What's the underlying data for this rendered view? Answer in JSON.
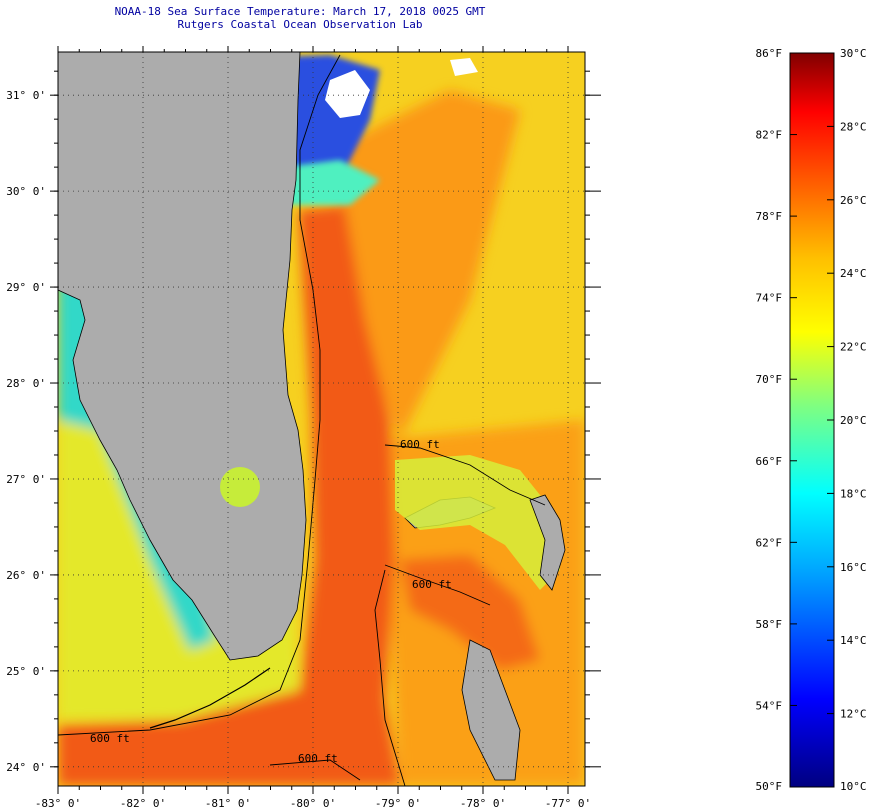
{
  "header": {
    "title": "NOAA-18 Sea Surface Temperature:  March 17, 2018 0025 GMT",
    "subtitle": "Rutgers Coastal Ocean Observation Lab"
  },
  "map": {
    "lon_range": [
      -83.0,
      -76.8
    ],
    "lat_range": [
      23.8,
      31.45
    ],
    "lon_ticks": [
      {
        "value": -83,
        "label": "-83° 0'"
      },
      {
        "value": -82,
        "label": "-82° 0'"
      },
      {
        "value": -81,
        "label": "-81° 0'"
      },
      {
        "value": -80,
        "label": "-80° 0'"
      },
      {
        "value": -79,
        "label": "-79° 0'"
      },
      {
        "value": -78,
        "label": "-78° 0'"
      },
      {
        "value": -77,
        "label": "-77° 0'"
      }
    ],
    "lat_ticks": [
      {
        "value": 31,
        "label": "31° 0'"
      },
      {
        "value": 30,
        "label": "30° 0'"
      },
      {
        "value": 29,
        "label": "29° 0'"
      },
      {
        "value": 28,
        "label": "28° 0'"
      },
      {
        "value": 27,
        "label": "27° 0'"
      },
      {
        "value": 26,
        "label": "26° 0'"
      },
      {
        "value": 25,
        "label": "25° 0'"
      },
      {
        "value": 24,
        "label": "24° 0'"
      }
    ],
    "contour_label": "600 ft",
    "colors": {
      "land": "#acacac",
      "cloud": "#ffffff",
      "gulf_stream": "#f25a12",
      "atlantic": "#f6d020",
      "gulf": "#e4e82a",
      "coastal_cold": "#32d8c8"
    }
  },
  "colorbar": {
    "fahrenheit": [
      {
        "value": 86,
        "label": "86°F"
      },
      {
        "value": 82,
        "label": "82°F"
      },
      {
        "value": 78,
        "label": "78°F"
      },
      {
        "value": 74,
        "label": "74°F"
      },
      {
        "value": 70,
        "label": "70°F"
      },
      {
        "value": 66,
        "label": "66°F"
      },
      {
        "value": 62,
        "label": "62°F"
      },
      {
        "value": 58,
        "label": "58°F"
      },
      {
        "value": 54,
        "label": "54°F"
      },
      {
        "value": 50,
        "label": "50°F"
      }
    ],
    "celsius": [
      {
        "value": 30,
        "label": "30°C"
      },
      {
        "value": 28,
        "label": "28°C"
      },
      {
        "value": 26,
        "label": "26°C"
      },
      {
        "value": 24,
        "label": "24°C"
      },
      {
        "value": 22,
        "label": "22°C"
      },
      {
        "value": 20,
        "label": "20°C"
      },
      {
        "value": 18,
        "label": "18°C"
      },
      {
        "value": 16,
        "label": "16°C"
      },
      {
        "value": 14,
        "label": "14°C"
      },
      {
        "value": 12,
        "label": "12°C"
      },
      {
        "value": 10,
        "label": "10°C"
      }
    ],
    "stops": [
      {
        "t": 0.0,
        "color": "#000080"
      },
      {
        "t": 0.12,
        "color": "#0000ff"
      },
      {
        "t": 0.3,
        "color": "#00aaff"
      },
      {
        "t": 0.4,
        "color": "#00ffff"
      },
      {
        "t": 0.52,
        "color": "#80ff80"
      },
      {
        "t": 0.62,
        "color": "#ffff00"
      },
      {
        "t": 0.72,
        "color": "#ffc000"
      },
      {
        "t": 0.82,
        "color": "#ff6000"
      },
      {
        "t": 0.92,
        "color": "#ff0000"
      },
      {
        "t": 1.0,
        "color": "#800000"
      }
    ]
  }
}
